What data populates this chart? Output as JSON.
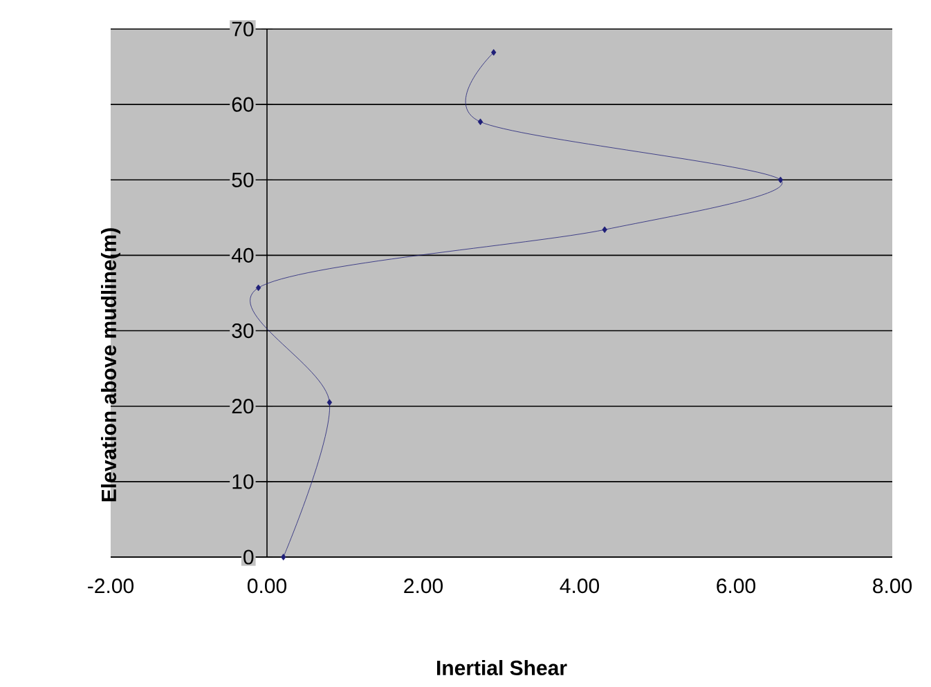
{
  "chart_data": {
    "type": "line",
    "xlabel": "Inertial Shear",
    "ylabel": "Elevation above mudline(m)",
    "x": [
      0.21,
      0.8,
      -0.11,
      4.32,
      6.57,
      2.73,
      2.9
    ],
    "series": [
      {
        "color": "#1f1f78",
        "values": [
          0,
          20.5,
          35.7,
          43.4,
          50.0,
          57.7,
          66.9
        ]
      }
    ],
    "xlim": [
      -2,
      8
    ],
    "ylim": [
      0,
      70
    ],
    "xticks": [
      {
        "value": -2,
        "label": "-2.00"
      },
      {
        "value": 0,
        "label": "0.00"
      },
      {
        "value": 2,
        "label": "2.00"
      },
      {
        "value": 4,
        "label": "4.00"
      },
      {
        "value": 6,
        "label": "6.00"
      },
      {
        "value": 8,
        "label": "8.00"
      }
    ],
    "yticks": [
      0,
      10,
      20,
      30,
      40,
      50,
      60,
      70
    ],
    "grid": "y",
    "marker": "diamond",
    "line_style": "solid"
  }
}
